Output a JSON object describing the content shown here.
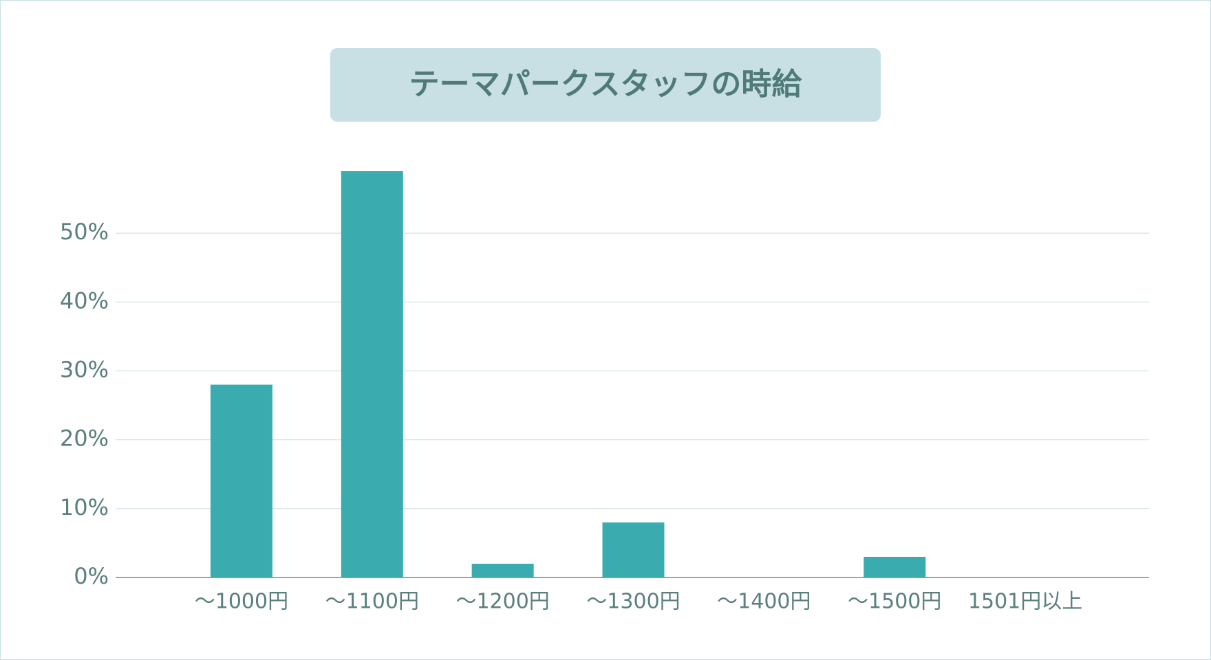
{
  "chart_data": {
    "type": "bar",
    "title": "テーマパークスタッフの時給",
    "categories": [
      "～1000円",
      "～1100円",
      "～1200円",
      "～1300円",
      "～1400円",
      "～1500円",
      "1501円以上"
    ],
    "values": [
      28,
      59,
      2,
      8,
      0,
      3,
      0
    ],
    "color": "#3aacb0",
    "ylim": [
      0,
      60
    ],
    "yticks": [
      {
        "value": 0,
        "label": "0%"
      },
      {
        "value": 10,
        "label": "10%"
      },
      {
        "value": 20,
        "label": "20%"
      },
      {
        "value": 30,
        "label": "30%"
      },
      {
        "value": 40,
        "label": "40%"
      },
      {
        "value": 50,
        "label": "50%"
      }
    ],
    "grid": true
  }
}
